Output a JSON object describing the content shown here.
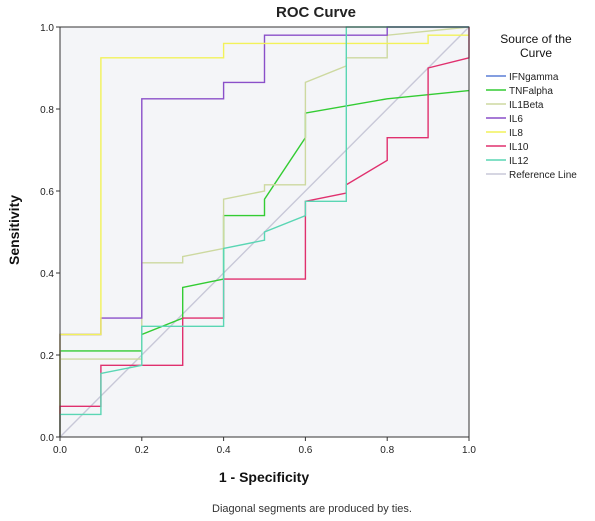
{
  "chart_data": {
    "type": "line",
    "title": "ROC Curve",
    "xlabel": "1 - Specificity",
    "ylabel": "Sensitivity",
    "xlim": [
      0,
      1
    ],
    "ylim": [
      0,
      1
    ],
    "x_ticks": [
      "0.0",
      "0.2",
      "0.4",
      "0.6",
      "0.8",
      "1.0"
    ],
    "y_ticks": [
      "0.0",
      "0.2",
      "0.4",
      "0.6",
      "0.8",
      "1.0"
    ],
    "legend_title": "Source of the Curve",
    "legend_position": "right",
    "note": "Diagonal segments are produced by ties.",
    "series": [
      {
        "name": "IFNgamma",
        "color": "#5b7fd6",
        "points": []
      },
      {
        "name": "TNFalpha",
        "color": "#33cc33",
        "points": [
          [
            0,
            0
          ],
          [
            0,
            0.21
          ],
          [
            0.2,
            0.21
          ],
          [
            0.2,
            0.25
          ],
          [
            0.3,
            0.29
          ],
          [
            0.3,
            0.365
          ],
          [
            0.4,
            0.385
          ],
          [
            0.4,
            0.54
          ],
          [
            0.5,
            0.54
          ],
          [
            0.5,
            0.58
          ],
          [
            0.6,
            0.73
          ],
          [
            0.6,
            0.79
          ],
          [
            0.8,
            0.825
          ],
          [
            1.0,
            0.845
          ]
        ]
      },
      {
        "name": "IL1Beta",
        "color": "#cdd9a0",
        "points": [
          [
            0,
            0
          ],
          [
            0,
            0.19
          ],
          [
            0.2,
            0.19
          ],
          [
            0.2,
            0.425
          ],
          [
            0.3,
            0.425
          ],
          [
            0.3,
            0.44
          ],
          [
            0.4,
            0.46
          ],
          [
            0.4,
            0.58
          ],
          [
            0.5,
            0.6
          ],
          [
            0.5,
            0.615
          ],
          [
            0.6,
            0.615
          ],
          [
            0.6,
            0.865
          ],
          [
            0.7,
            0.905
          ],
          [
            0.7,
            0.925
          ],
          [
            0.8,
            0.925
          ],
          [
            0.8,
            0.98
          ],
          [
            1.0,
            1.0
          ]
        ]
      },
      {
        "name": "IL6",
        "color": "#8a4fc9",
        "points": [
          [
            0,
            0
          ],
          [
            0,
            0.25
          ],
          [
            0.1,
            0.25
          ],
          [
            0.1,
            0.29
          ],
          [
            0.2,
            0.29
          ],
          [
            0.2,
            0.825
          ],
          [
            0.4,
            0.825
          ],
          [
            0.4,
            0.865
          ],
          [
            0.5,
            0.865
          ],
          [
            0.5,
            0.98
          ],
          [
            0.8,
            0.98
          ],
          [
            0.8,
            1.0
          ],
          [
            1.0,
            1.0
          ]
        ]
      },
      {
        "name": "IL8",
        "color": "#f2f25a",
        "points": [
          [
            0,
            0
          ],
          [
            0,
            0.25
          ],
          [
            0.1,
            0.25
          ],
          [
            0.1,
            0.925
          ],
          [
            0.4,
            0.925
          ],
          [
            0.4,
            0.96
          ],
          [
            0.9,
            0.96
          ],
          [
            0.9,
            0.98
          ],
          [
            1.0,
            0.98
          ]
        ]
      },
      {
        "name": "IL10",
        "color": "#e0306e",
        "points": [
          [
            0,
            0
          ],
          [
            0,
            0.075
          ],
          [
            0.1,
            0.075
          ],
          [
            0.1,
            0.175
          ],
          [
            0.3,
            0.175
          ],
          [
            0.3,
            0.29
          ],
          [
            0.4,
            0.29
          ],
          [
            0.4,
            0.385
          ],
          [
            0.6,
            0.385
          ],
          [
            0.6,
            0.575
          ],
          [
            0.7,
            0.595
          ],
          [
            0.7,
            0.615
          ],
          [
            0.8,
            0.675
          ],
          [
            0.8,
            0.73
          ],
          [
            0.9,
            0.73
          ],
          [
            0.9,
            0.9
          ],
          [
            1.0,
            0.925
          ],
          [
            1.0,
            1.0
          ]
        ]
      },
      {
        "name": "IL12",
        "color": "#5ad6b4",
        "points": [
          [
            0,
            0
          ],
          [
            0,
            0.055
          ],
          [
            0.1,
            0.055
          ],
          [
            0.1,
            0.155
          ],
          [
            0.2,
            0.175
          ],
          [
            0.2,
            0.27
          ],
          [
            0.4,
            0.27
          ],
          [
            0.4,
            0.46
          ],
          [
            0.5,
            0.48
          ],
          [
            0.5,
            0.5
          ],
          [
            0.6,
            0.54
          ],
          [
            0.6,
            0.575
          ],
          [
            0.7,
            0.575
          ],
          [
            0.7,
            1.0
          ],
          [
            1.0,
            1.0
          ]
        ]
      },
      {
        "name": "Reference Line",
        "color": "#c8c8d8",
        "points": [
          [
            0,
            0
          ],
          [
            1,
            1
          ]
        ]
      }
    ]
  }
}
